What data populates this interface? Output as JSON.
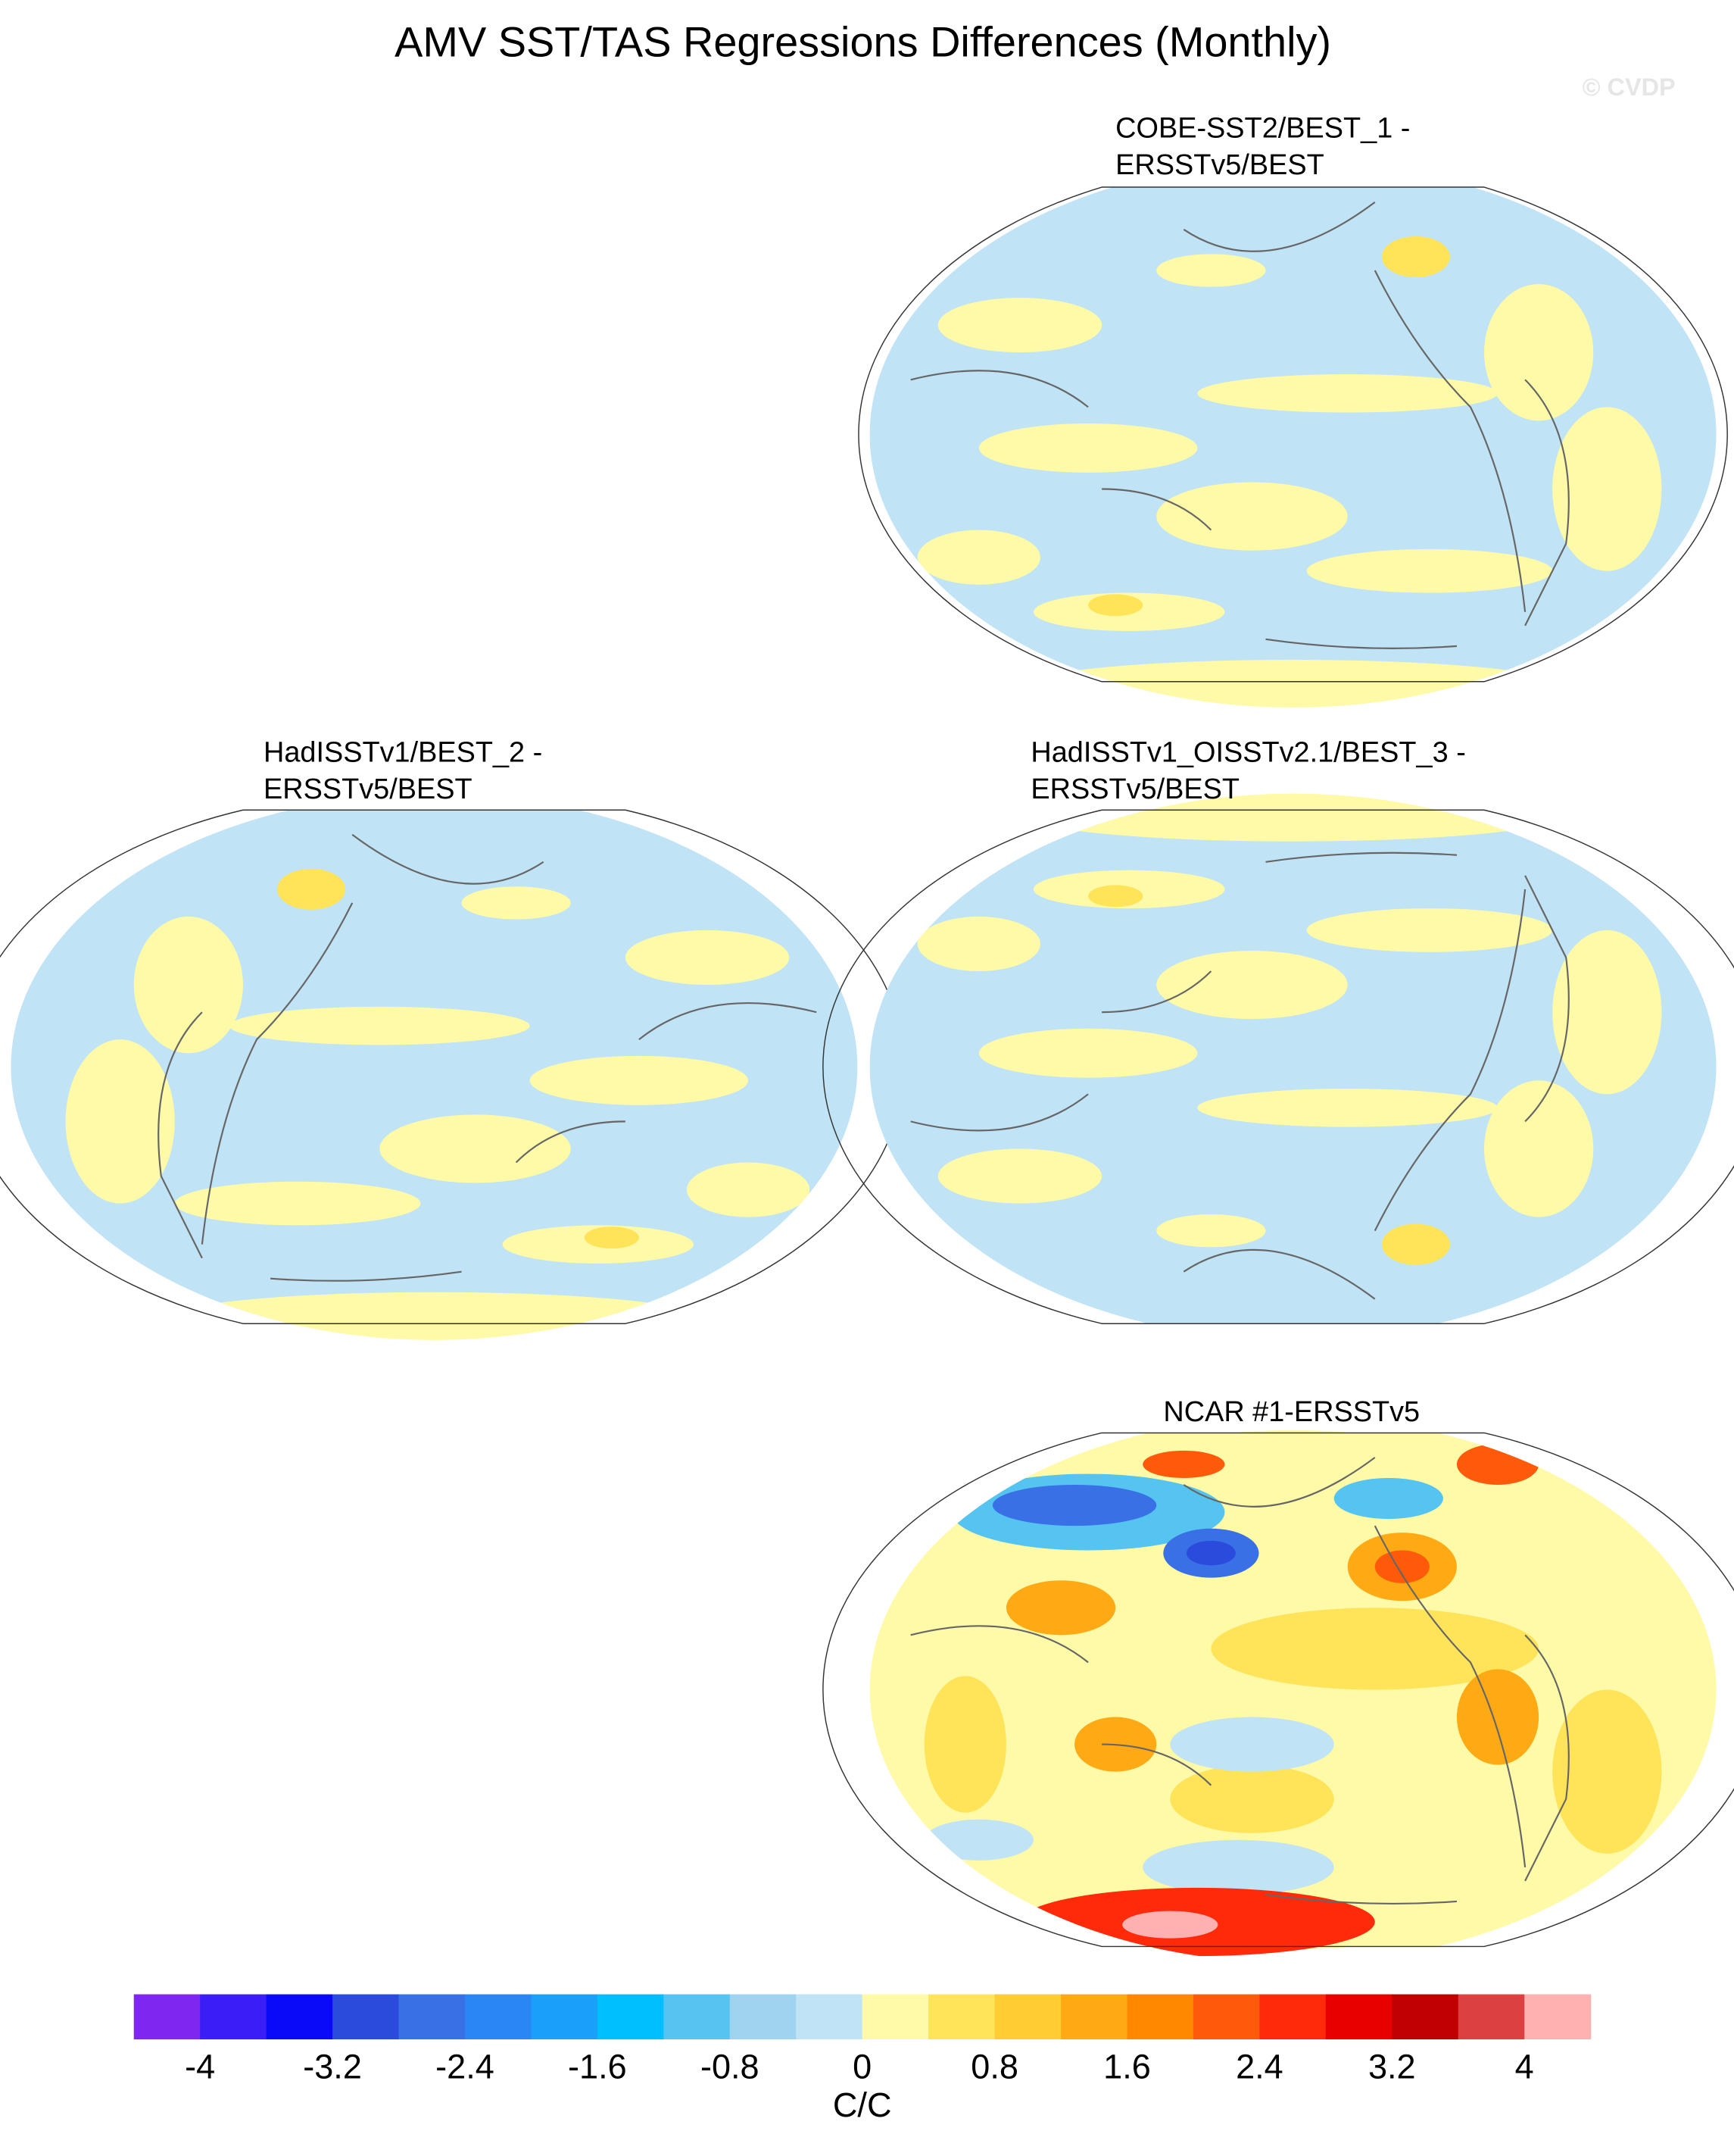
{
  "header": {
    "title": "AMV SST/TAS Regressions Differences (Monthly)",
    "watermark": "© CVDP"
  },
  "panels": [
    {
      "title": [
        "COBE-SST2/BEST_1 -",
        "ERSSTv5/BEST"
      ]
    },
    {
      "title": [
        "HadISSTv1/BEST_2 -",
        "ERSSTv5/BEST"
      ]
    },
    {
      "title": [
        "HadISSTv1_OISSTv2.1/BEST_3 -",
        "ERSSTv5/BEST"
      ]
    },
    {
      "title": [
        "NCAR #1-ERSSTv5"
      ]
    }
  ],
  "colorbar": {
    "labels": [
      -4,
      -3.2,
      -2.4,
      -1.6,
      -0.8,
      0,
      0.8,
      1.6,
      2.4,
      3.2,
      4
    ],
    "colors": [
      "#7f26f0",
      "#3a1ef5",
      "#0a0af8",
      "#2a4bdc",
      "#3a70e6",
      "#2a86f5",
      "#1aa0f8",
      "#00bfff",
      "#55c4f0",
      "#9fd3ef",
      "#c0e3f5",
      "#fffaa8",
      "#ffe45a",
      "#ffcc33",
      "#ffaa14",
      "#ff8800",
      "#ff5a0a",
      "#ff2a0a",
      "#e80000",
      "#c00000",
      "#dd4040",
      "#ffb0b0"
    ],
    "units": "C/C"
  }
}
